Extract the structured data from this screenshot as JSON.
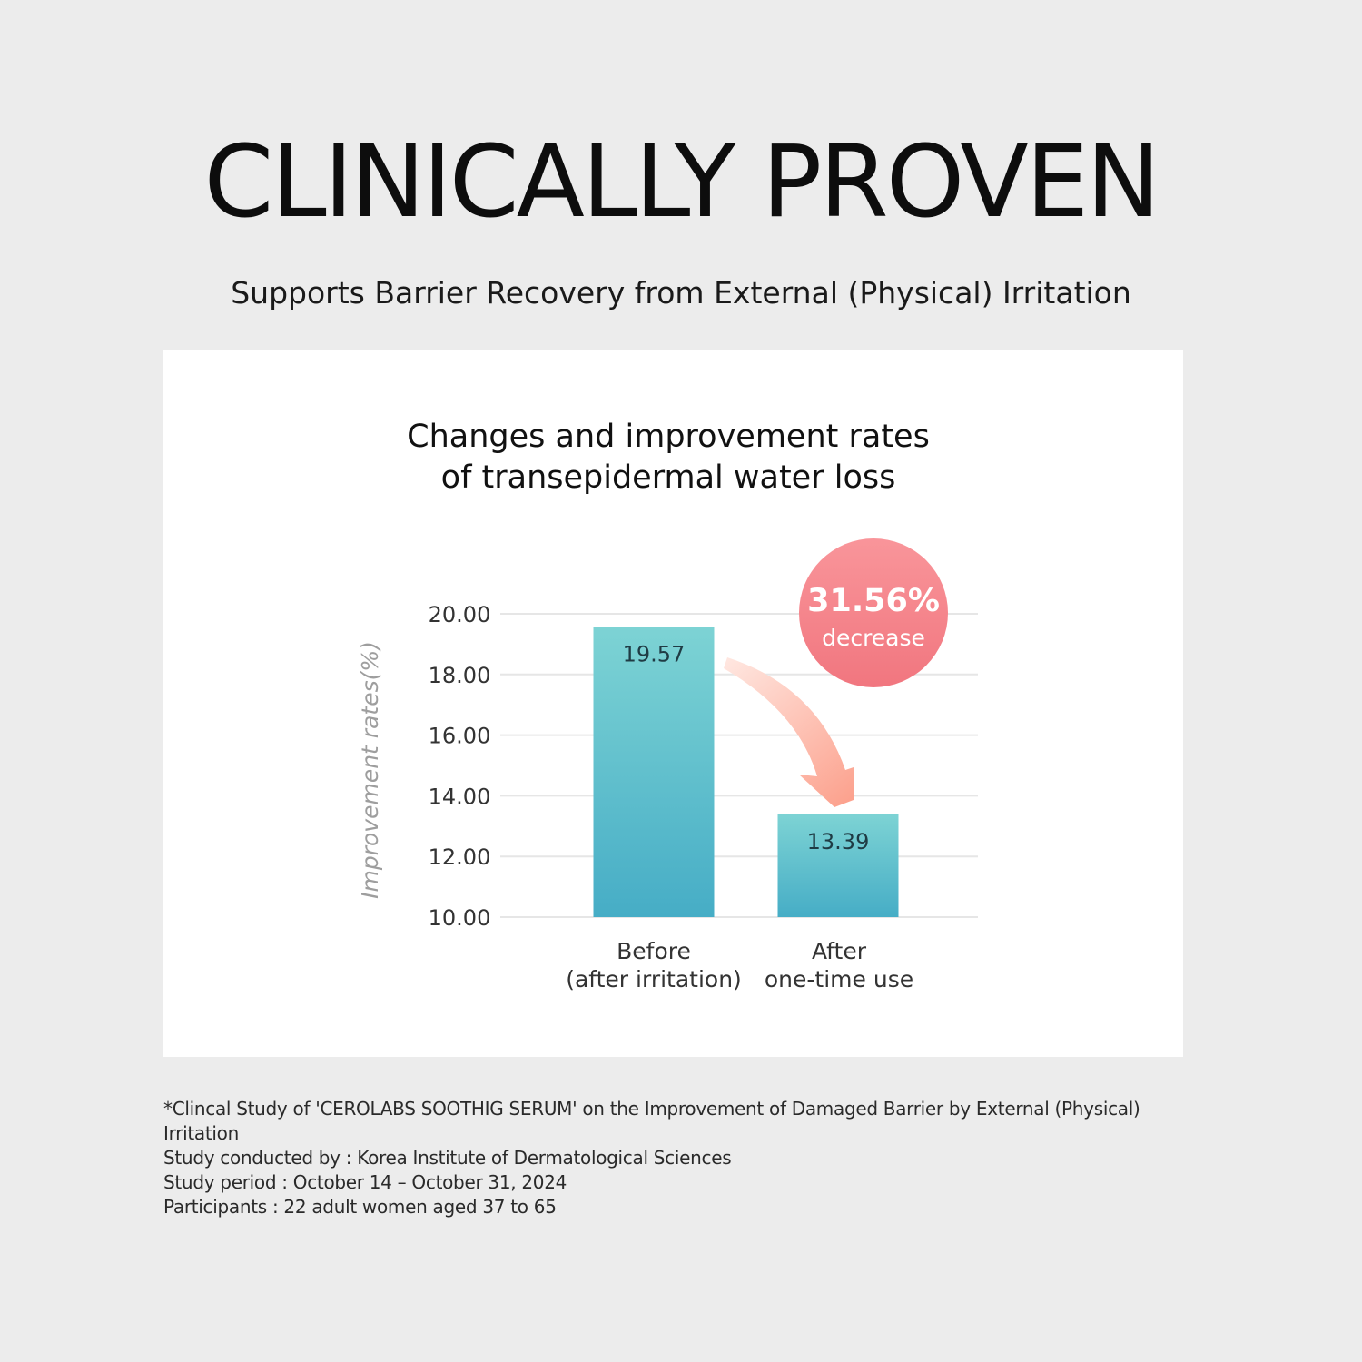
{
  "headline": "CLINICALLY PROVEN",
  "subheadline": "Supports Barrier Recovery from External (Physical) Irritation",
  "chart_data": {
    "type": "bar",
    "title": [
      "Changes and improvement rates",
      "of transepidermal water loss"
    ],
    "ylabel": "Improvement rates(%)",
    "xlabel": "",
    "ylim": [
      10,
      20
    ],
    "yticks": [
      "20.00",
      "18.00",
      "16.00",
      "14.00",
      "12.00",
      "10.00"
    ],
    "ytick_values": [
      20,
      18,
      16,
      14,
      12,
      10
    ],
    "grid": true,
    "categories": [
      [
        "Before",
        "(after irritation)"
      ],
      [
        "After",
        "one-time use"
      ]
    ],
    "values": [
      19.57,
      13.39
    ],
    "data_labels": [
      "19.57",
      "13.39"
    ],
    "annotation": {
      "value": "31.56%",
      "text": "decrease"
    },
    "colors": {
      "bar_top": "#7dd3d4",
      "bar_bottom": "#46adc6",
      "badge_light": "#f9959a",
      "badge_dark": "#f1767f",
      "arrow_start": "#ffe9e3",
      "arrow_end": "#fca08c",
      "grid": "#e6e6e6",
      "axis_label": "#9e9e9e"
    }
  },
  "footnote": [
    "*Clincal Study of 'CEROLABS SOOTHIG SERUM' on the Improvement of Damaged Barrier by External (Physical)",
    "Irritation",
    "Study conducted by : Korea Institute of Dermatological Sciences",
    "Study period : October 14 – October 31, 2024",
    "Participants : 22 adult women aged 37 to 65"
  ]
}
